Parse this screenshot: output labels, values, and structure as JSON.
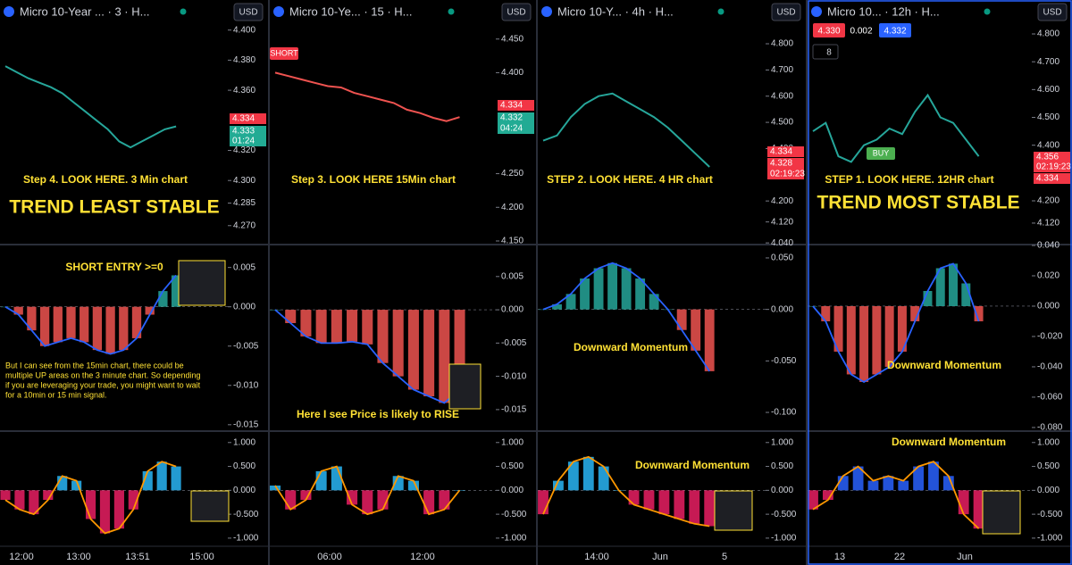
{
  "panels": [
    {
      "title": "Micro 10-Year ... · 3 · H...",
      "currency": "USD",
      "xlabels": [
        "12:00",
        "13:00",
        "13:51",
        "15:00"
      ],
      "price": {
        "ylim": [
          4.258,
          4.42
        ],
        "color": "#26a69a",
        "yticks": [
          {
            "value": 4.4,
            "label": "4.400"
          },
          {
            "value": 4.38,
            "label": "4.380"
          },
          {
            "value": 4.36,
            "label": "4.360"
          },
          {
            "value": 4.32,
            "label": "4.320"
          },
          {
            "value": 4.3,
            "label": "4.300"
          },
          4.285,
          {
            "value": 4.27,
            "label": "4.270"
          }
        ],
        "values": [
          4.376,
          4.372,
          4.368,
          4.365,
          4.362,
          4.358,
          4.352,
          4.346,
          4.34,
          4.334,
          4.326,
          4.322,
          4.326,
          4.33,
          4.334,
          4.336
        ],
        "price_labels": [
          "4.334",
          "4.333",
          "01:24"
        ],
        "annotations": [
          "Step 4. LOOK HERE. 3 Min chart",
          "TREND LEAST STABLE"
        ]
      },
      "macd": {
        "ylim": [
          -0.0157,
          0.0078
        ],
        "color": "#2962ff",
        "up_color": "#26a69a",
        "down_color": "#ef5350",
        "yticks": [
          0.005,
          {
            "value": 0,
            "label": "0.000"
          },
          -0.005,
          {
            "value": -0.01,
            "label": "-0.010"
          },
          -0.015
        ],
        "values": [
          0,
          -0.001,
          -0.003,
          -0.005,
          -0.0045,
          -0.004,
          -0.0045,
          -0.0055,
          -0.006,
          -0.0055,
          -0.004,
          -0.001,
          0.002,
          0.004
        ],
        "annotations": [
          "SHORT ENTRY >=0",
          "But I can see from the 15min chart, there could be",
          "multiple UP areas on the 3 minute chart. So depending",
          "if you are leveraging your trade, you might want to wait",
          "for a 10min or 15 min signal."
        ]
      },
      "osc": {
        "ylim": [
          -1.17,
          1.22
        ],
        "color": "#ff9800",
        "up_color": "#29b6f6",
        "down_color": "#e91e63",
        "yticks": [
          {
            "value": 1,
            "label": "1.000"
          },
          {
            "value": 0.5,
            "label": "0.500"
          },
          {
            "value": 0,
            "label": "0.000"
          },
          {
            "value": -0.5,
            "label": "-0.500"
          },
          {
            "value": -1,
            "label": "-1.000"
          }
        ],
        "values": [
          -0.2,
          -0.4,
          -0.5,
          -0.2,
          0.3,
          0.2,
          -0.6,
          -0.9,
          -0.8,
          -0.4,
          0.4,
          0.6,
          0.5
        ],
        "annotations": []
      }
    },
    {
      "title": "Micro 10-Ye... · 15 · H...",
      "currency": "USD",
      "xlabels": [
        "06:00",
        "12:00"
      ],
      "price": {
        "ylim": [
          4.146,
          4.508
        ],
        "color": "#ef5350",
        "yticks": [
          {
            "value": 4.45,
            "label": "4.450"
          },
          {
            "value": 4.4,
            "label": "4.400"
          },
          {
            "value": 4.25,
            "label": "4.250"
          },
          {
            "value": 4.2,
            "label": "4.200"
          },
          {
            "value": 4.15,
            "label": "4.150"
          }
        ],
        "values": [
          4.4,
          4.395,
          4.39,
          4.385,
          4.38,
          4.378,
          4.37,
          4.365,
          4.36,
          4.355,
          4.345,
          4.34,
          4.333,
          4.328,
          4.334
        ],
        "price_labels": [
          "4.334",
          "4.332",
          "04:24"
        ],
        "annotations": [
          "SHORT",
          "Step 3. LOOK HERE 15Min chart"
        ]
      },
      "macd": {
        "ylim": [
          -0.0181,
          0.00967
        ],
        "color": "#2962ff",
        "up_color": "#26a69a",
        "down_color": "#ef5350",
        "yticks": [
          0.005,
          {
            "value": 0,
            "label": "0.000"
          },
          -0.005,
          {
            "value": -0.01,
            "label": "-0.010"
          },
          -0.015
        ],
        "values": [
          0,
          -0.002,
          -0.004,
          -0.005,
          -0.005,
          -0.0048,
          -0.0052,
          -0.008,
          -0.01,
          -0.012,
          -0.013,
          -0.014,
          -0.012
        ],
        "annotations": [
          "Here I see Price is likely to RISE"
        ]
      },
      "osc": {
        "ylim": [
          -1.17,
          1.22
        ],
        "color": "#ff9800",
        "up_color": "#29b6f6",
        "down_color": "#e91e63",
        "yticks": [
          {
            "value": 1,
            "label": "1.000"
          },
          {
            "value": 0.5,
            "label": "0.500"
          },
          {
            "value": 0,
            "label": "0.000"
          },
          {
            "value": -0.5,
            "label": "-0.500"
          },
          {
            "value": -1,
            "label": "-1.000"
          }
        ],
        "values": [
          0.1,
          -0.4,
          -0.2,
          0.4,
          0.5,
          -0.3,
          -0.5,
          -0.4,
          0.3,
          0.2,
          -0.5,
          -0.4,
          0
        ],
        "annotations": []
      }
    },
    {
      "title": "Micro 10-Y... · 4h · H...",
      "currency": "USD",
      "xlabels": [
        "14:00",
        "Jun",
        "5"
      ],
      "price": {
        "ylim": [
          4.037,
          4.967
        ],
        "color": "#26a69a",
        "yticks": [
          {
            "value": 4.8,
            "label": "4.800"
          },
          {
            "value": 4.7,
            "label": "4.700"
          },
          {
            "value": 4.6,
            "label": "4.600"
          },
          {
            "value": 4.5,
            "label": "4.500"
          },
          {
            "value": 4.4,
            "label": "4.400"
          },
          {
            "value": 4.2,
            "label": "4.200"
          },
          {
            "value": 4.12,
            "label": "4.120"
          },
          {
            "value": 4.04,
            "label": "4.040"
          }
        ],
        "values": [
          4.43,
          4.45,
          4.52,
          4.57,
          4.6,
          4.61,
          4.58,
          4.55,
          4.52,
          4.48,
          4.43,
          4.38,
          4.33
        ],
        "price_labels": [
          "4.334",
          "4.328",
          "02:19:23"
        ],
        "annotations": [
          "STEP 2. LOOK HERE. 4 HR chart"
        ]
      },
      "macd": {
        "ylim": [
          -0.1173,
          0.0621
        ],
        "color": "#2962ff",
        "up_color": "#26a69a",
        "down_color": "#ef5350",
        "yticks": [
          {
            "value": 0.05,
            "label": "0.050"
          },
          {
            "value": 0,
            "label": "0.000"
          },
          {
            "value": -0.05,
            "label": "-0.050"
          },
          {
            "value": -0.1,
            "label": "-0.100"
          }
        ],
        "values": [
          0,
          0.005,
          0.015,
          0.03,
          0.04,
          0.045,
          0.04,
          0.03,
          0.015,
          0,
          -0.02,
          -0.04,
          -0.06
        ],
        "annotations": [
          "Downward Momentum"
        ]
      },
      "osc": {
        "ylim": [
          -1.17,
          1.22
        ],
        "color": "#ff9800",
        "up_color": "#29b6f6",
        "down_color": "#e91e63",
        "yticks": [
          {
            "value": 1,
            "label": "1.000"
          },
          {
            "value": 0.5,
            "label": "0.500"
          },
          {
            "value": 0,
            "label": "0.000"
          },
          {
            "value": -0.5,
            "label": "-0.500"
          },
          {
            "value": -1,
            "label": "-1.000"
          }
        ],
        "values": [
          -0.5,
          0.2,
          0.6,
          0.7,
          0.5,
          0,
          -0.3,
          -0.4,
          -0.5,
          -0.6,
          -0.7,
          -0.75
        ],
        "annotations": [
          "Downward Momentum"
        ]
      }
    },
    {
      "title": "Micro 10... · 12h · H...",
      "currency": "USD",
      "xlabels": [
        "13",
        "22",
        "Jun"
      ],
      "quote": [
        "4.330",
        "0.002",
        "4.332",
        "8"
      ],
      "price": {
        "ylim": [
          4.046,
          4.922
        ],
        "color": "#26a69a",
        "yticks": [
          {
            "value": 4.8,
            "label": "4.800"
          },
          {
            "value": 4.7,
            "label": "4.700"
          },
          {
            "value": 4.6,
            "label": "4.600"
          },
          {
            "value": 4.5,
            "label": "4.500"
          },
          {
            "value": 4.4,
            "label": "4.400"
          },
          {
            "value": 4.2,
            "label": "4.200"
          },
          {
            "value": 4.12,
            "label": "4.120"
          }
        ],
        "values": [
          4.45,
          4.48,
          4.36,
          4.34,
          4.4,
          4.42,
          4.46,
          4.44,
          4.52,
          4.58,
          4.5,
          4.48,
          4.42,
          4.36
        ],
        "price_labels": [
          "4.356",
          "02:19:23",
          "4.334"
        ],
        "annotations": [
          "STEP 1. LOOK HERE.  12HR chart",
          "TREND MOST STABLE",
          "BUY"
        ]
      },
      "macd": {
        "ylim": [
          -0.0818,
          0.04
        ],
        "color": "#2962ff",
        "up_color": "#26a69a",
        "down_color": "#ef5350",
        "yticks": [
          {
            "value": 0.04,
            "label": "0.040"
          },
          {
            "value": 0.02,
            "label": "0.020"
          },
          {
            "value": 0,
            "label": "0.000"
          },
          {
            "value": -0.02,
            "label": "-0.020"
          },
          {
            "value": -0.04,
            "label": "-0.040"
          },
          {
            "value": -0.06,
            "label": "-0.060"
          },
          {
            "value": -0.08,
            "label": "-0.080"
          }
        ],
        "values": [
          0,
          -0.01,
          -0.03,
          -0.045,
          -0.05,
          -0.045,
          -0.04,
          -0.03,
          -0.01,
          0.01,
          0.025,
          0.028,
          0.015,
          -0.01
        ],
        "annotations": [
          "Downward Momentum"
        ]
      },
      "osc": {
        "ylim": [
          -1.17,
          1.22
        ],
        "color": "#ff9800",
        "up_color": "#2962ff",
        "down_color": "#e91e63",
        "yticks": [
          {
            "value": 1,
            "label": "1.000"
          },
          {
            "value": 0.5,
            "label": "0.500"
          },
          {
            "value": 0,
            "label": "0.000"
          },
          {
            "value": -0.5,
            "label": "-0.500"
          },
          {
            "value": -1,
            "label": "-1.000"
          }
        ],
        "values": [
          -0.4,
          -0.2,
          0.3,
          0.5,
          0.2,
          0.3,
          0.2,
          0.5,
          0.6,
          0.3,
          -0.5,
          -0.8
        ],
        "annotations": [
          "Downward Momentum"
        ]
      }
    }
  ]
}
